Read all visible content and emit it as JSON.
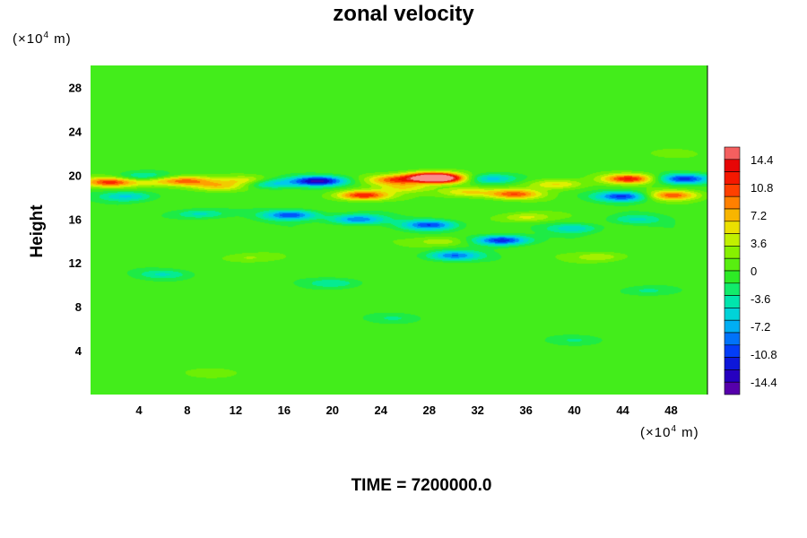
{
  "chart_data": {
    "type": "heatmap",
    "title": "zonal velocity",
    "ylabel": "Height",
    "x_unit": "(×10⁴ m)",
    "y_unit": "(×10⁴ m)",
    "x_ticks": [
      "4",
      "8",
      "12",
      "16",
      "20",
      "24",
      "28",
      "32",
      "36",
      "40",
      "44",
      "48"
    ],
    "y_ticks": [
      "4",
      "8",
      "12",
      "16",
      "20",
      "24",
      "28"
    ],
    "xlim": [
      0,
      51
    ],
    "ylim": [
      0,
      30
    ],
    "colorbar": {
      "ticks": [
        "14.4",
        "10.8",
        "7.2",
        "3.6",
        "0",
        "-3.6",
        "-7.2",
        "-10.8",
        "-14.4"
      ],
      "range": [
        -16,
        16
      ]
    },
    "features": [
      {
        "x": 1.5,
        "y": 19.4,
        "value": 11
      },
      {
        "x": 5,
        "y": 19.6,
        "value": 8
      },
      {
        "x": 8,
        "y": 19.5,
        "value": 9
      },
      {
        "x": 10.5,
        "y": 19.0,
        "value": 6
      },
      {
        "x": 13,
        "y": 19.5,
        "value": 7
      },
      {
        "x": 4.5,
        "y": 19.8,
        "value": -9
      },
      {
        "x": 3,
        "y": 18.1,
        "value": -6
      },
      {
        "x": 14.5,
        "y": 19.3,
        "value": -8
      },
      {
        "x": 18.8,
        "y": 19.5,
        "value": -14
      },
      {
        "x": 22.5,
        "y": 18.2,
        "value": 12
      },
      {
        "x": 25,
        "y": 19.6,
        "value": 9
      },
      {
        "x": 29,
        "y": 19.7,
        "value": 14
      },
      {
        "x": 28,
        "y": 19.9,
        "value": 12
      },
      {
        "x": 26,
        "y": 18.9,
        "value": 5
      },
      {
        "x": 31,
        "y": 18.5,
        "value": 6
      },
      {
        "x": 35,
        "y": 18.3,
        "value": 10
      },
      {
        "x": 38.5,
        "y": 19.2,
        "value": 6
      },
      {
        "x": 44.5,
        "y": 19.7,
        "value": 12
      },
      {
        "x": 48,
        "y": 18.2,
        "value": 10
      },
      {
        "x": 49,
        "y": 19.7,
        "value": -11
      },
      {
        "x": 44,
        "y": 18.1,
        "value": -11
      },
      {
        "x": 33,
        "y": 19.7,
        "value": -7
      },
      {
        "x": 16.5,
        "y": 16.4,
        "value": -10
      },
      {
        "x": 22,
        "y": 16.0,
        "value": -9
      },
      {
        "x": 28,
        "y": 15.5,
        "value": -10
      },
      {
        "x": 34,
        "y": 14.1,
        "value": -12
      },
      {
        "x": 36,
        "y": 16.2,
        "value": 5
      },
      {
        "x": 29,
        "y": 14.0,
        "value": 4
      },
      {
        "x": 30,
        "y": 12.7,
        "value": -9
      },
      {
        "x": 42,
        "y": 12.6,
        "value": 4
      },
      {
        "x": 40,
        "y": 15.2,
        "value": -5
      },
      {
        "x": 9,
        "y": 16.5,
        "value": -5
      },
      {
        "x": 45,
        "y": 16.0,
        "value": -4
      },
      {
        "x": 6,
        "y": 11.0,
        "value": -4
      },
      {
        "x": 20,
        "y": 10.2,
        "value": -4
      },
      {
        "x": 13,
        "y": 12.5,
        "value": 3
      },
      {
        "x": 46,
        "y": 9.5,
        "value": -3
      },
      {
        "x": 25,
        "y": 7.0,
        "value": -2.5
      },
      {
        "x": 40,
        "y": 5.0,
        "value": -2.5
      },
      {
        "x": 10,
        "y": 2.0,
        "value": 2
      },
      {
        "x": 48,
        "y": 22.0,
        "value": 1.5
      }
    ]
  },
  "footer": {
    "time_label": "TIME = 7200000.0"
  }
}
